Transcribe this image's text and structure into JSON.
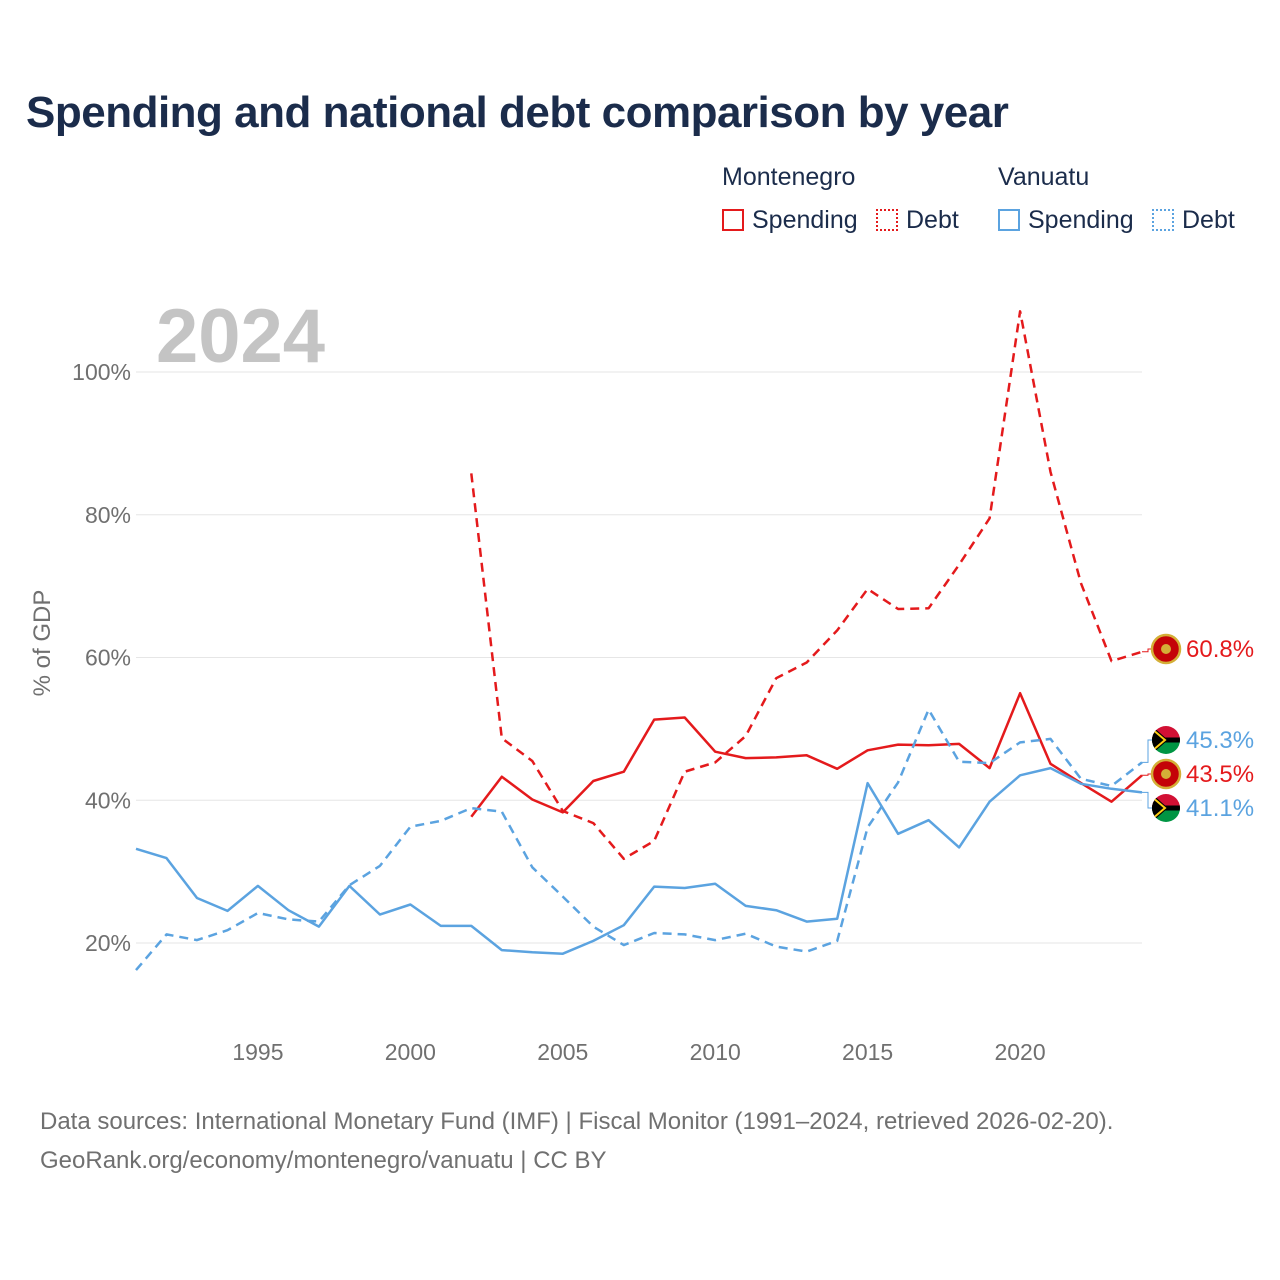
{
  "title": "Spending and national debt comparison by year",
  "legend": {
    "groups": [
      {
        "country": "Montenegro",
        "color": "#e41a1c",
        "items": [
          {
            "label": "Spending",
            "style": "solid"
          },
          {
            "label": "Debt",
            "style": "dotted"
          }
        ]
      },
      {
        "country": "Vanuatu",
        "color": "#5ba3e0",
        "items": [
          {
            "label": "Spending",
            "style": "solid"
          },
          {
            "label": "Debt",
            "style": "dotted"
          }
        ]
      }
    ]
  },
  "year_watermark": "2024",
  "footer": {
    "line1": "Data sources: International Monetary Fund (IMF) | Fiscal Monitor (1991–2024, retrieved 2026-02-20).",
    "line2": "GeoRank.org/economy/montenegro/vanuatu | CC BY"
  },
  "chart_data": {
    "type": "line",
    "title": "Spending and national debt comparison by year",
    "xlabel": "",
    "ylabel": "% of GDP",
    "xlim": [
      1991,
      2024
    ],
    "ylim": [
      10,
      110
    ],
    "x_ticks": [
      1995,
      2000,
      2005,
      2010,
      2015,
      2020
    ],
    "y_ticks": [
      20,
      40,
      60,
      80,
      100
    ],
    "y_tick_labels": [
      "20%",
      "40%",
      "60%",
      "80%",
      "100%"
    ],
    "grid": true,
    "legend_position": "top-right",
    "series": [
      {
        "name": "Montenegro Debt",
        "country": "Montenegro",
        "metric": "Debt",
        "color": "#e41a1c",
        "dashed": true,
        "end_label": "60.8%",
        "x": [
          2002,
          2003,
          2004,
          2005,
          2006,
          2007,
          2008,
          2009,
          2010,
          2011,
          2012,
          2013,
          2014,
          2015,
          2016,
          2017,
          2018,
          2019,
          2020,
          2021,
          2022,
          2023,
          2024
        ],
        "values": [
          85.8,
          48.7,
          45.5,
          38.5,
          36.8,
          31.8,
          34.3,
          44.0,
          45.3,
          49.0,
          57.1,
          59.3,
          63.8,
          69.6,
          66.8,
          66.9,
          73.0,
          79.5,
          108.5,
          86.0,
          70.4,
          59.5,
          60.8
        ]
      },
      {
        "name": "Montenegro Spending",
        "country": "Montenegro",
        "metric": "Spending",
        "color": "#e41a1c",
        "dashed": false,
        "end_label": "43.5%",
        "x": [
          2002,
          2003,
          2004,
          2005,
          2006,
          2007,
          2008,
          2009,
          2010,
          2011,
          2012,
          2013,
          2014,
          2015,
          2016,
          2017,
          2018,
          2019,
          2020,
          2021,
          2022,
          2023,
          2024
        ],
        "values": [
          37.7,
          43.3,
          40.1,
          38.3,
          42.7,
          44.0,
          51.3,
          51.6,
          46.8,
          45.9,
          46.0,
          46.3,
          44.4,
          47.0,
          47.8,
          47.7,
          47.9,
          44.5,
          55.0,
          45.1,
          42.4,
          39.8,
          43.5
        ]
      },
      {
        "name": "Vanuatu Debt",
        "country": "Vanuatu",
        "metric": "Debt",
        "color": "#5ba3e0",
        "dashed": true,
        "end_label": "45.3%",
        "x": [
          1991,
          1992,
          1993,
          1994,
          1995,
          1996,
          1997,
          1998,
          1999,
          2000,
          2001,
          2002,
          2003,
          2004,
          2005,
          2006,
          2007,
          2008,
          2009,
          2010,
          2011,
          2012,
          2013,
          2014,
          2015,
          2016,
          2017,
          2018,
          2019,
          2020,
          2021,
          2022,
          2023,
          2024
        ],
        "values": [
          16.2,
          21.2,
          20.4,
          21.8,
          24.2,
          23.3,
          23.0,
          28.1,
          30.8,
          36.3,
          37.1,
          38.9,
          38.4,
          30.6,
          26.5,
          22.3,
          19.7,
          21.4,
          21.2,
          20.4,
          21.3,
          19.5,
          18.8,
          20.3,
          36.2,
          42.5,
          52.7,
          45.4,
          45.2,
          48.1,
          48.6,
          43.0,
          42.0,
          45.3
        ]
      },
      {
        "name": "Vanuatu Spending",
        "country": "Vanuatu",
        "metric": "Spending",
        "color": "#5ba3e0",
        "dashed": false,
        "end_label": "41.1%",
        "x": [
          1991,
          1992,
          1993,
          1994,
          1995,
          1996,
          1997,
          1998,
          1999,
          2000,
          2001,
          2002,
          2003,
          2004,
          2005,
          2006,
          2007,
          2008,
          2009,
          2010,
          2011,
          2012,
          2013,
          2014,
          2015,
          2016,
          2017,
          2018,
          2019,
          2020,
          2021,
          2022,
          2023,
          2024
        ],
        "values": [
          33.2,
          31.9,
          26.3,
          24.5,
          28.0,
          24.6,
          22.3,
          28.0,
          24.0,
          25.4,
          22.4,
          22.4,
          19.0,
          18.7,
          18.5,
          20.3,
          22.5,
          27.9,
          27.7,
          28.3,
          25.2,
          24.6,
          23.0,
          23.4,
          42.4,
          35.3,
          37.2,
          33.4,
          39.8,
          43.5,
          44.5,
          42.3,
          41.6,
          41.1
        ]
      }
    ]
  }
}
